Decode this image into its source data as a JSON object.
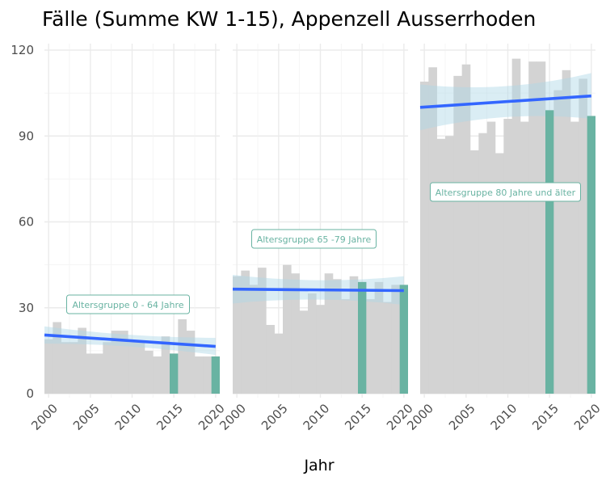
{
  "chart_data": {
    "type": "bar",
    "title": "Fälle (Summe KW 1-15), Appenzell Ausserrhoden",
    "xlabel": "Jahr",
    "ylabel": "",
    "ylim": [
      0,
      120
    ],
    "yticks": [
      0,
      30,
      60,
      90,
      120
    ],
    "xlim": [
      1999.5,
      2020.5
    ],
    "xticks": [
      2000,
      2005,
      2010,
      2015,
      2020
    ],
    "grid": true,
    "colors": {
      "base_bar": "#d3d3d3",
      "highlight_bar": "#69b3a2",
      "trend_line": "#3366ff",
      "confidence_band": "#add8e6"
    },
    "years": [
      1999,
      2000,
      2001,
      2002,
      2003,
      2004,
      2005,
      2006,
      2007,
      2008,
      2009,
      2010,
      2011,
      2012,
      2013,
      2014,
      2015,
      2016,
      2017,
      2018,
      2019,
      2020
    ],
    "highlight_years": [
      2015,
      2020
    ],
    "panels": [
      {
        "label": "Altersgruppe 0 - 64 Jahre",
        "values": [
          19,
          19,
          25,
          18,
          18,
          23,
          14,
          14,
          18,
          22,
          22,
          18,
          18,
          15,
          13,
          20,
          14,
          26,
          22,
          13,
          13,
          13
        ],
        "trend": {
          "start": [
            1999.5,
            20.5
          ],
          "end": [
            2020,
            16.5
          ],
          "band": 3
        }
      },
      {
        "label": "Altersgruppe 65 -79 Jahre",
        "values": [
          41,
          41,
          43,
          38,
          44,
          24,
          21,
          45,
          42,
          29,
          35,
          31,
          42,
          40,
          33,
          41,
          39,
          33,
          39,
          32,
          38,
          38
        ],
        "trend": {
          "start": [
            1999.5,
            36.5
          ],
          "end": [
            2020,
            36.0
          ],
          "band": 5
        }
      },
      {
        "label": "Altersgruppe 80 Jahre und älter",
        "values": [
          109,
          109,
          114,
          89,
          90,
          111,
          115,
          85,
          91,
          95,
          84,
          96,
          117,
          95,
          116,
          116,
          99,
          106,
          113,
          95,
          110,
          97
        ],
        "trend": {
          "start": [
            1999.5,
            100
          ],
          "end": [
            2020,
            104
          ],
          "band": 8
        }
      }
    ]
  }
}
